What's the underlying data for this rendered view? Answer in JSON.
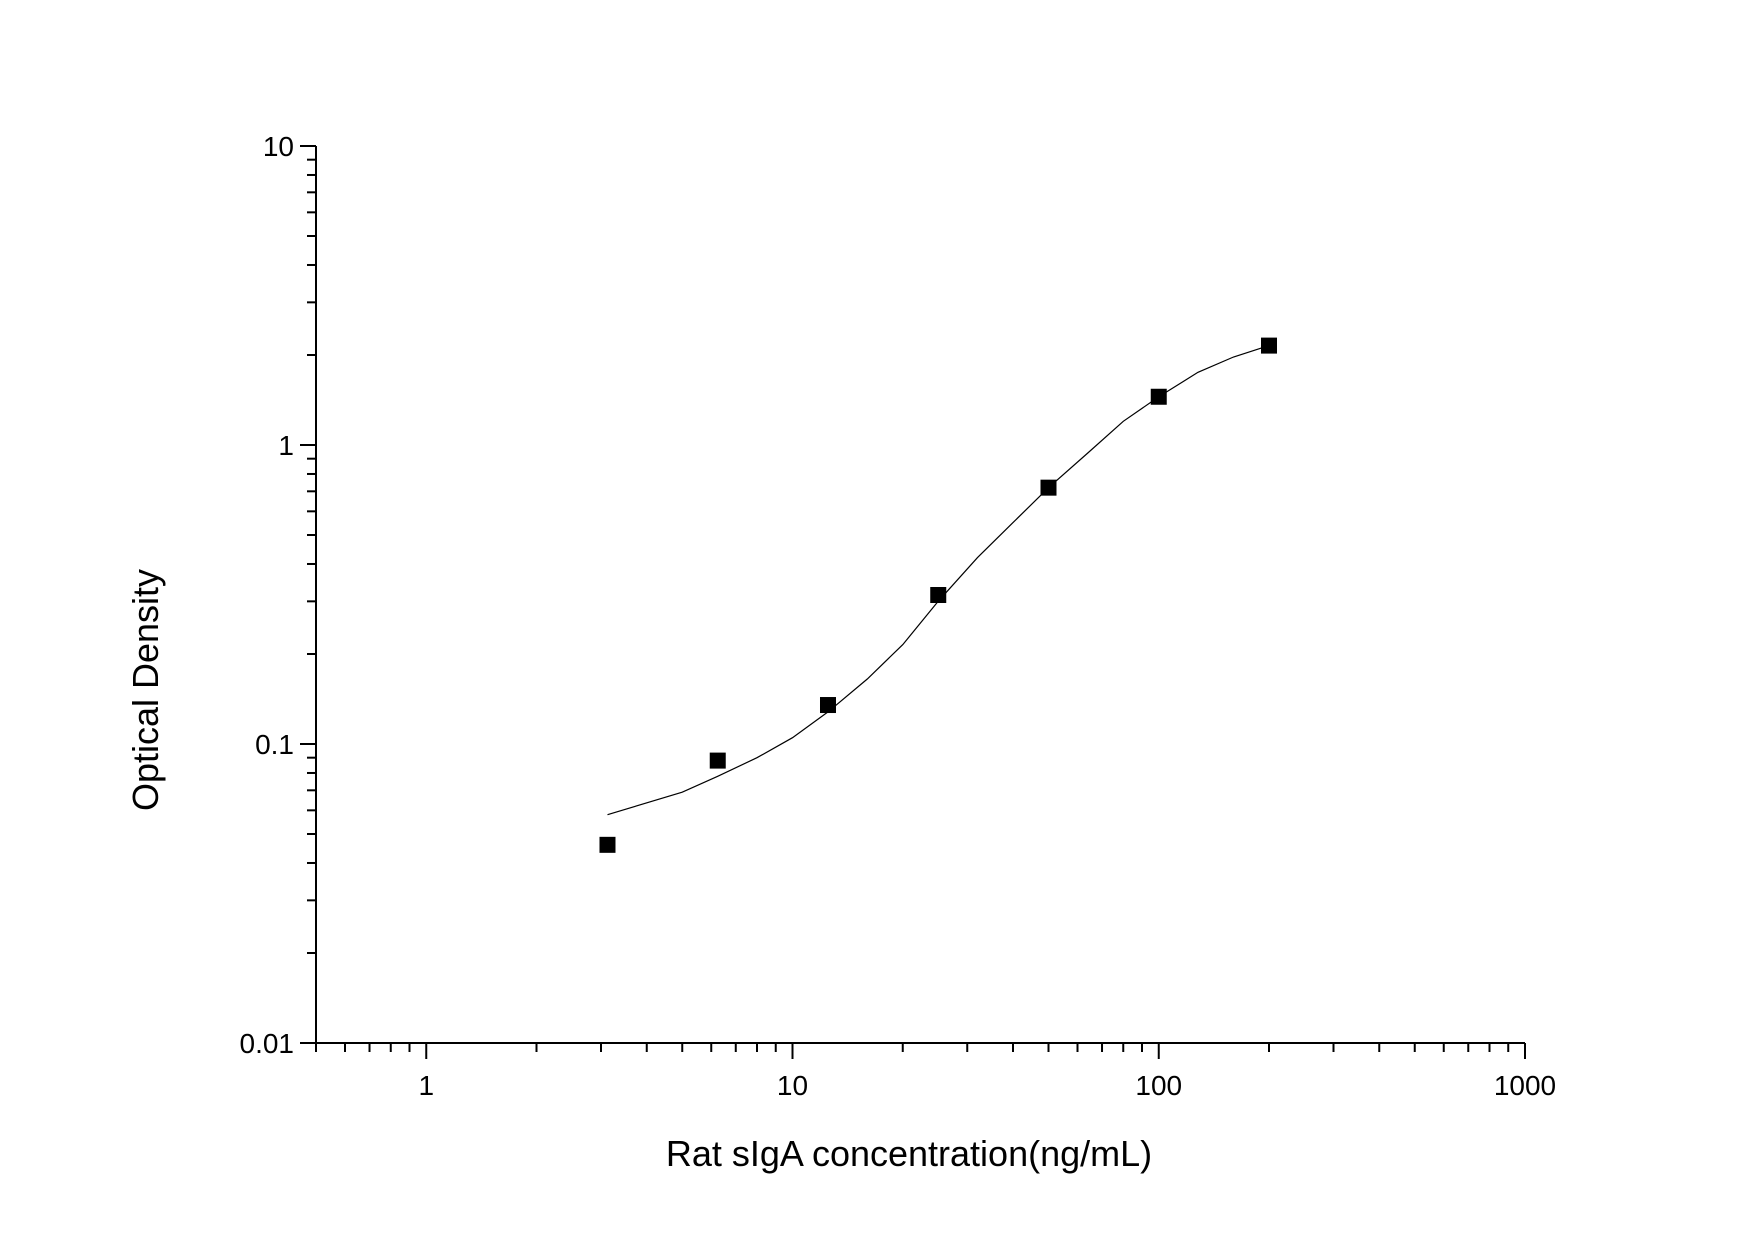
{
  "chart_data": {
    "type": "scatter",
    "xlabel": "Rat sIgA concentration(ng/mL)",
    "ylabel": "Optical Density",
    "xscale": "log",
    "yscale": "log",
    "xlim": [
      0.5,
      1000
    ],
    "ylim": [
      0.01,
      10
    ],
    "x_ticks": [
      {
        "value": 1,
        "label": "1"
      },
      {
        "value": 10,
        "label": "10"
      },
      {
        "value": 100,
        "label": "100"
      },
      {
        "value": 1000,
        "label": "1000"
      }
    ],
    "y_ticks": [
      {
        "value": 0.01,
        "label": "0.01"
      },
      {
        "value": 0.1,
        "label": "0.1"
      },
      {
        "value": 1,
        "label": "1"
      },
      {
        "value": 10,
        "label": "10"
      }
    ],
    "grid": false,
    "series": [
      {
        "marker": "square",
        "color": "#000000",
        "x": [
          3.125,
          6.25,
          12.5,
          25,
          50,
          100,
          200
        ],
        "y": [
          0.046,
          0.088,
          0.135,
          0.315,
          0.72,
          1.45,
          2.15
        ]
      }
    ],
    "fit_curve": {
      "color": "#000000",
      "x": [
        3.125,
        5,
        6.25,
        8,
        10,
        12.5,
        16,
        20,
        25,
        32,
        40,
        50,
        64,
        80,
        100,
        128,
        160,
        200
      ],
      "y": [
        0.058,
        0.069,
        0.078,
        0.09,
        0.105,
        0.128,
        0.165,
        0.215,
        0.3,
        0.42,
        0.55,
        0.72,
        0.94,
        1.2,
        1.45,
        1.75,
        1.97,
        2.15
      ]
    }
  }
}
